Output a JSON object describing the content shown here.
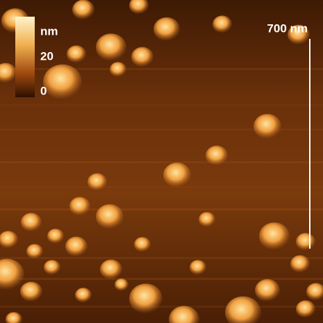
{
  "colorbar": {
    "unit": "nm",
    "ticks": [
      20,
      0
    ]
  },
  "scale_bar": {
    "label": "700 nm"
  }
}
